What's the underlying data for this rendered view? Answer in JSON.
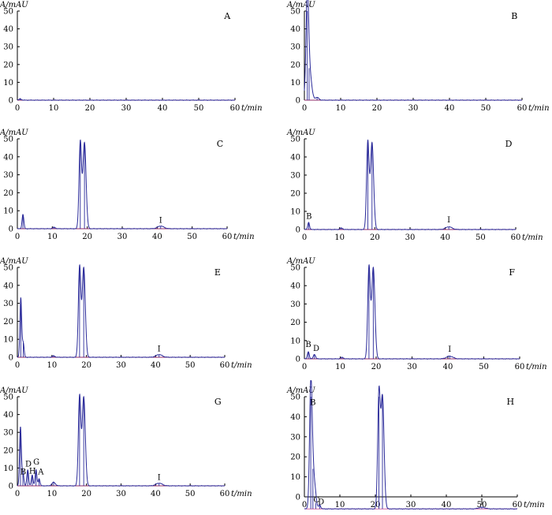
{
  "figure": {
    "y_axis_label": "A/mAU",
    "x_axis_label": "t/min",
    "colors": {
      "trace": "#2b2b9a",
      "baseline": "#c23a8a",
      "axis": "#000000"
    }
  },
  "chart_data": [
    {
      "type": "line",
      "panel": "A",
      "x_ticks": [
        "0",
        "10",
        "20",
        "30",
        "40",
        "50",
        "60"
      ],
      "y_ticks": [
        "0",
        "10",
        "20",
        "30",
        "40",
        "50"
      ],
      "xlim": [
        0,
        60
      ],
      "ylim": [
        0,
        50
      ],
      "baseline": 0,
      "peaks": [
        {
          "x": 0.8,
          "height": 0.8,
          "width": 0.3
        }
      ],
      "peak_labels": []
    },
    {
      "type": "line",
      "panel": "B",
      "x_ticks": [
        "0",
        "10",
        "20",
        "30",
        "40",
        "50",
        "60"
      ],
      "y_ticks": [
        "0",
        "10",
        "20",
        "30",
        "40",
        "50"
      ],
      "xlim": [
        0,
        60
      ],
      "ylim": [
        0,
        50
      ],
      "baseline": 0,
      "peaks": [
        {
          "x": 0.8,
          "height": 50,
          "width": 0.35
        },
        {
          "x": 1.3,
          "height": 18,
          "width": 0.6
        },
        {
          "x": 3.5,
          "height": 1.5,
          "width": 0.5
        }
      ],
      "peak_labels": []
    },
    {
      "type": "line",
      "panel": "C",
      "x_ticks": [
        "0",
        "10",
        "20",
        "30",
        "40",
        "50",
        "60"
      ],
      "y_ticks": [
        "0",
        "10",
        "20",
        "30",
        "40",
        "50"
      ],
      "xlim": [
        0,
        60
      ],
      "ylim": [
        0,
        50
      ],
      "baseline": 0,
      "peaks": [
        {
          "x": 1.6,
          "height": 8,
          "width": 0.25
        },
        {
          "x": 10.5,
          "height": 0.8,
          "width": 0.4
        },
        {
          "x": 18.0,
          "height": 48,
          "width": 0.35
        },
        {
          "x": 19.2,
          "height": 48,
          "width": 0.45
        },
        {
          "x": 41,
          "height": 1.5,
          "width": 0.9
        }
      ],
      "peak_labels": [
        {
          "text": "I",
          "x": 41,
          "y": 2.5
        }
      ]
    },
    {
      "type": "line",
      "panel": "D",
      "x_ticks": [
        "0",
        "10",
        "20",
        "30",
        "40",
        "50",
        "60"
      ],
      "y_ticks": [
        "0",
        "10",
        "20",
        "30",
        "40",
        "50"
      ],
      "xlim": [
        0,
        60
      ],
      "ylim": [
        0,
        50
      ],
      "baseline": 0,
      "peaks": [
        {
          "x": 1.2,
          "height": 4,
          "width": 0.25
        },
        {
          "x": 10.5,
          "height": 0.8,
          "width": 0.4
        },
        {
          "x": 18.0,
          "height": 48,
          "width": 0.35
        },
        {
          "x": 19.2,
          "height": 48,
          "width": 0.45
        },
        {
          "x": 41,
          "height": 1.5,
          "width": 0.9
        }
      ],
      "peak_labels": [
        {
          "text": "B",
          "x": 1.3,
          "y": 5
        },
        {
          "text": "I",
          "x": 41,
          "y": 3
        }
      ]
    },
    {
      "type": "line",
      "panel": "E",
      "x_ticks": [
        "0",
        "10",
        "20",
        "30",
        "40",
        "50",
        "60"
      ],
      "y_ticks": [
        "0",
        "10",
        "20",
        "30",
        "40",
        "50"
      ],
      "xlim": [
        0,
        60
      ],
      "ylim": [
        0,
        50
      ],
      "baseline": 0,
      "peaks": [
        {
          "x": 1.0,
          "height": 33,
          "width": 0.25
        },
        {
          "x": 1.7,
          "height": 8,
          "width": 0.25
        },
        {
          "x": 10.5,
          "height": 0.8,
          "width": 0.4
        },
        {
          "x": 18.0,
          "height": 50,
          "width": 0.35
        },
        {
          "x": 19.2,
          "height": 50,
          "width": 0.45
        },
        {
          "x": 41,
          "height": 1.5,
          "width": 0.9
        }
      ],
      "peak_labels": [
        {
          "text": "I",
          "x": 41,
          "y": 2.5
        }
      ]
    },
    {
      "type": "line",
      "panel": "F",
      "x_ticks": [
        "0",
        "10",
        "20",
        "30",
        "40",
        "50",
        "60"
      ],
      "y_ticks": [
        "0",
        "10",
        "20",
        "30",
        "40",
        "50"
      ],
      "xlim": [
        0,
        60
      ],
      "ylim": [
        0,
        50
      ],
      "baseline": 0,
      "peaks": [
        {
          "x": 1.1,
          "height": 4,
          "width": 0.25
        },
        {
          "x": 2.8,
          "height": 2.5,
          "width": 0.3
        },
        {
          "x": 10.5,
          "height": 0.8,
          "width": 0.4
        },
        {
          "x": 18.0,
          "height": 50,
          "width": 0.35
        },
        {
          "x": 19.2,
          "height": 50,
          "width": 0.45
        },
        {
          "x": 40.5,
          "height": 1.5,
          "width": 0.9
        }
      ],
      "peak_labels": [
        {
          "text": "B",
          "x": 1.1,
          "y": 5.5
        },
        {
          "text": "D",
          "x": 3.3,
          "y": 3.5
        },
        {
          "text": "I",
          "x": 40.5,
          "y": 3
        }
      ]
    },
    {
      "type": "line",
      "panel": "G",
      "x_ticks": [
        "0",
        "10",
        "20",
        "30",
        "40",
        "50",
        "60"
      ],
      "y_ticks": [
        "0",
        "10",
        "20",
        "30",
        "40",
        "50"
      ],
      "xlim": [
        0,
        60
      ],
      "ylim": [
        0,
        50
      ],
      "baseline": 0,
      "peaks": [
        {
          "x": 0.9,
          "height": 33,
          "width": 0.25
        },
        {
          "x": 1.6,
          "height": 8,
          "width": 0.25
        },
        {
          "x": 3.0,
          "height": 9,
          "width": 0.25
        },
        {
          "x": 4.3,
          "height": 6,
          "width": 0.25
        },
        {
          "x": 5.4,
          "height": 9,
          "width": 0.25
        },
        {
          "x": 6.3,
          "height": 4,
          "width": 0.25
        },
        {
          "x": 10.5,
          "height": 2,
          "width": 0.5
        },
        {
          "x": 18.0,
          "height": 50,
          "width": 0.35
        },
        {
          "x": 19.2,
          "height": 50,
          "width": 0.45
        },
        {
          "x": 41,
          "height": 1.5,
          "width": 0.9
        }
      ],
      "peak_labels": [
        {
          "text": "B",
          "x": 1.7,
          "y": 5.5
        },
        {
          "text": "D",
          "x": 3.2,
          "y": 10
        },
        {
          "text": "H",
          "x": 4.4,
          "y": 6
        },
        {
          "text": "G",
          "x": 5.5,
          "y": 11
        },
        {
          "text": "A",
          "x": 6.8,
          "y": 5.5
        },
        {
          "text": "I",
          "x": 41,
          "y": 2.5
        }
      ]
    },
    {
      "type": "line",
      "panel": "H",
      "x_ticks": [
        "0",
        "10",
        "20",
        "30",
        "40",
        "50",
        "60"
      ],
      "y_ticks": [
        "0",
        "10",
        "20",
        "30",
        "40",
        "50"
      ],
      "xlim": [
        0,
        60
      ],
      "ylim": [
        0,
        50
      ],
      "baseline": -6,
      "peaks": [
        {
          "x": 1.8,
          "height": 56,
          "width": 0.35
        },
        {
          "x": 2.4,
          "height": 20,
          "width": 0.5
        },
        {
          "x": 3.2,
          "height": 3,
          "width": 0.3
        },
        {
          "x": 4.3,
          "height": 2,
          "width": 0.3
        },
        {
          "x": 21.0,
          "height": 56,
          "width": 0.35
        },
        {
          "x": 22.0,
          "height": 56,
          "width": 0.45
        },
        {
          "x": 50,
          "height": 0.8,
          "width": 0.9
        }
      ],
      "peak_labels": [
        {
          "text": "B",
          "x": 2.4,
          "y": 45
        },
        {
          "text": "C",
          "x": 3.4,
          "y": -3.5
        },
        {
          "text": "D",
          "x": 4.7,
          "y": -4.5
        },
        {
          "text": "I",
          "x": 50,
          "y": -4.5
        }
      ]
    }
  ]
}
